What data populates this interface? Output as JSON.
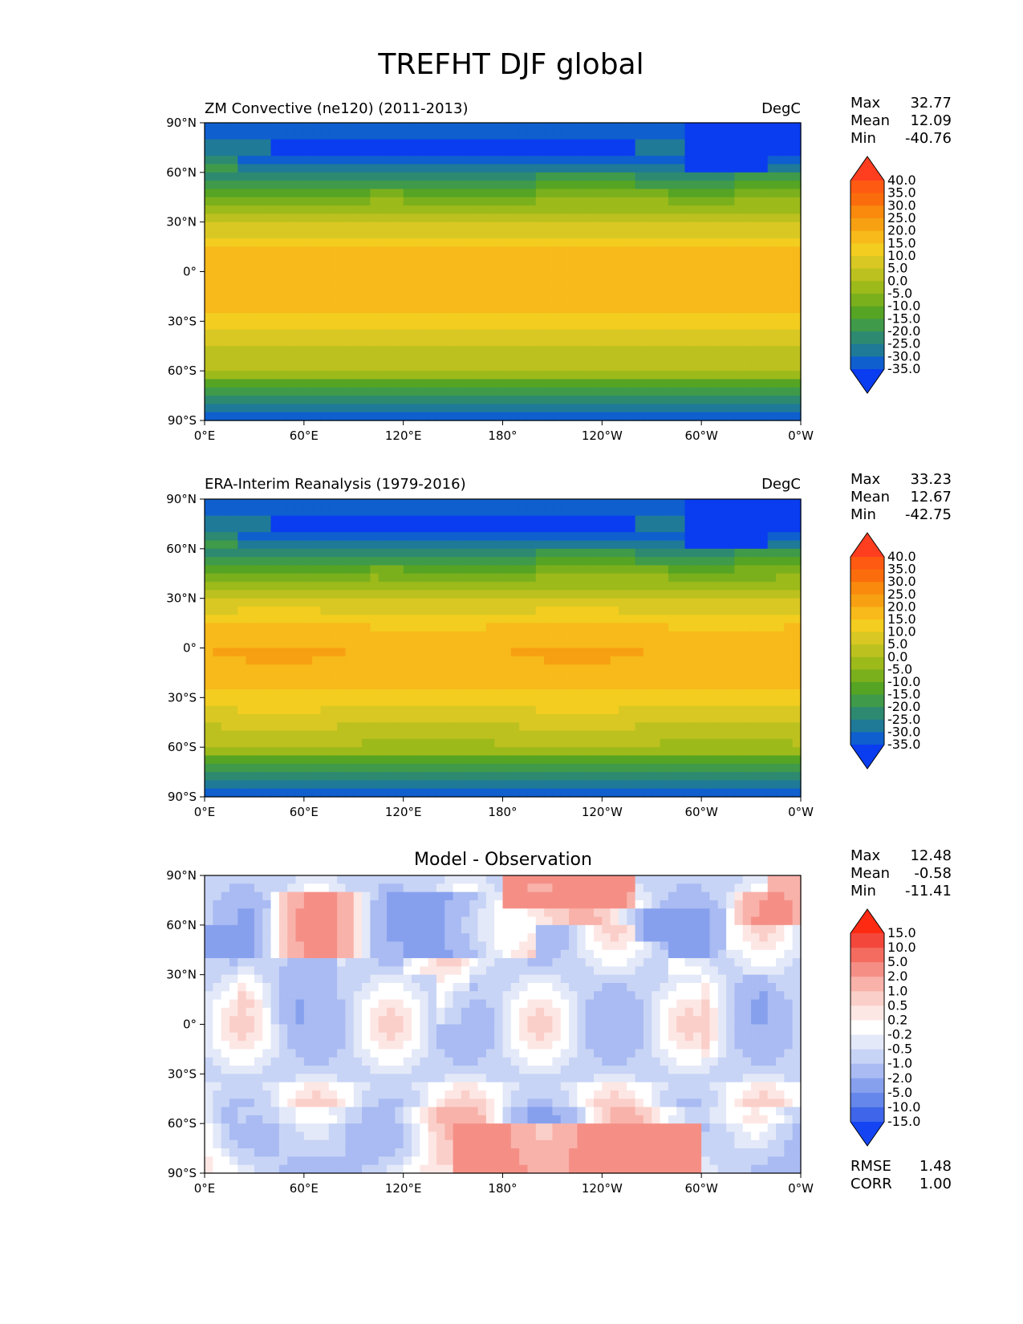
{
  "figure": {
    "title": "TREFHT DJF global"
  },
  "chart_data": [
    {
      "type": "heatmap",
      "title": "ZM Convective (ne120) (2011-2013)",
      "units": "DegC",
      "field": "model",
      "stats": {
        "max_label": "Max",
        "max": "32.77",
        "mean_label": "Mean",
        "mean": "12.09",
        "min_label": "Min",
        "min": "-40.76"
      },
      "colorbar": {
        "levels": [
          "40.0",
          "35.0",
          "30.0",
          "25.0",
          "20.0",
          "15.0",
          "10.0",
          "5.0",
          "0.0",
          "-5.0",
          "-10.0",
          "-15.0",
          "-20.0",
          "-25.0",
          "-30.0",
          "-35.0"
        ],
        "colors": [
          "#ff3d1f",
          "#ff5a12",
          "#fb6d0c",
          "#f98a0e",
          "#f7a012",
          "#f8b91a",
          "#f3cd1f",
          "#d9c823",
          "#bcc11f",
          "#9cba1a",
          "#7bb01d",
          "#56a423",
          "#3f9a4a",
          "#2d8a70",
          "#1f7a98",
          "#0f5fcf",
          "#0a3cf0"
        ],
        "extend": "both"
      },
      "xticks": [
        "0°E",
        "60°E",
        "120°E",
        "180°",
        "120°W",
        "60°W",
        "0°W"
      ],
      "yticks": [
        "90°N",
        "60°N",
        "30°N",
        "0°",
        "30°S",
        "60°S",
        "90°S"
      ],
      "xlim": [
        0,
        360
      ],
      "ylim": [
        -90,
        90
      ]
    },
    {
      "type": "heatmap",
      "title": "ERA-Interim Reanalysis (1979-2016)",
      "units": "DegC",
      "field": "obs",
      "stats": {
        "max_label": "Max",
        "max": "33.23",
        "mean_label": "Mean",
        "mean": "12.67",
        "min_label": "Min",
        "min": "-42.75"
      },
      "colorbar": {
        "levels": [
          "40.0",
          "35.0",
          "30.0",
          "25.0",
          "20.0",
          "15.0",
          "10.0",
          "5.0",
          "0.0",
          "-5.0",
          "-10.0",
          "-15.0",
          "-20.0",
          "-25.0",
          "-30.0",
          "-35.0"
        ],
        "colors": [
          "#ff3d1f",
          "#ff5a12",
          "#fb6d0c",
          "#f98a0e",
          "#f7a012",
          "#f8b91a",
          "#f3cd1f",
          "#d9c823",
          "#bcc11f",
          "#9cba1a",
          "#7bb01d",
          "#56a423",
          "#3f9a4a",
          "#2d8a70",
          "#1f7a98",
          "#0f5fcf",
          "#0a3cf0"
        ],
        "extend": "both"
      },
      "xticks": [
        "0°E",
        "60°E",
        "120°E",
        "180°",
        "120°W",
        "60°W",
        "0°W"
      ],
      "yticks": [
        "90°N",
        "60°N",
        "30°N",
        "0°",
        "30°S",
        "60°S",
        "90°S"
      ],
      "xlim": [
        0,
        360
      ],
      "ylim": [
        -90,
        90
      ]
    },
    {
      "type": "heatmap",
      "title": "Model - Observation",
      "units": "",
      "field": "diff",
      "stats": {
        "max_label": "Max",
        "max": "12.48",
        "mean_label": "Mean",
        "mean": "-0.58",
        "min_label": "Min",
        "min": "-11.41"
      },
      "colorbar": {
        "levels": [
          "15.0",
          "10.0",
          "5.0",
          "2.0",
          "1.0",
          "0.5",
          "0.2",
          "-0.2",
          "-0.5",
          "-1.0",
          "-2.0",
          "-5.0",
          "-10.0",
          "-15.0"
        ],
        "colors": [
          "#ff2a12",
          "#f4473c",
          "#f46b60",
          "#f58f86",
          "#f8b2aa",
          "#fbcfc9",
          "#fde7e4",
          "#ffffff",
          "#e3e9f8",
          "#c8d4f6",
          "#a9bbf2",
          "#87a0ee",
          "#6586ea",
          "#3f66ea",
          "#1545f2"
        ],
        "extend": "both"
      },
      "metrics": {
        "rmse_label": "RMSE",
        "rmse": "1.48",
        "corr_label": "CORR",
        "corr": "1.00"
      },
      "xticks": [
        "0°E",
        "60°E",
        "120°E",
        "180°",
        "120°W",
        "60°W",
        "0°W"
      ],
      "yticks": [
        "90°N",
        "60°N",
        "30°N",
        "0°",
        "30°S",
        "60°S",
        "90°S"
      ],
      "xlim": [
        0,
        360
      ],
      "ylim": [
        -90,
        90
      ]
    }
  ]
}
